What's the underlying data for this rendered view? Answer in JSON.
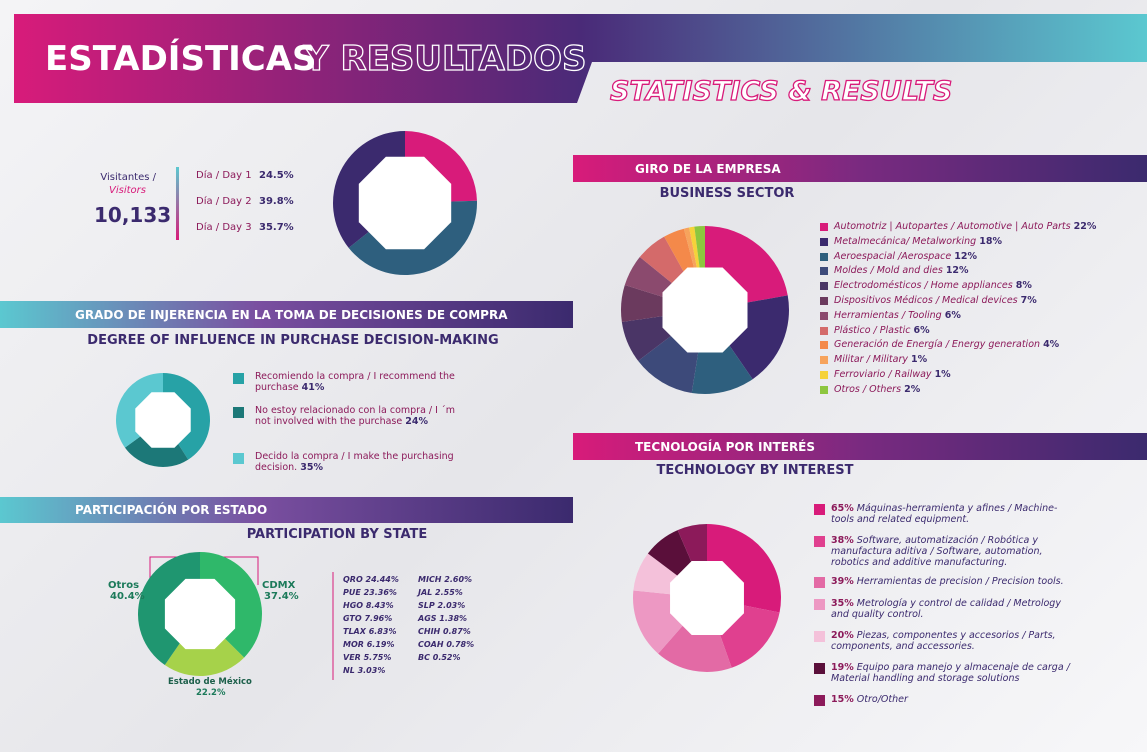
{
  "header": {
    "title_a": "ESTADÍSTICAS",
    "title_b": "Y RESULTADOS",
    "subtitle": "STATISTICS & RESULTS"
  },
  "chart_data": [
    {
      "type": "pie",
      "title": "Visitantes /",
      "subtitle": "Visitors",
      "total": {
        "value": 10133,
        "label": "10,133"
      },
      "categories": [
        "Día / Day 1",
        "Día / Day 2",
        "Día / Day 3"
      ],
      "values": [
        24.5,
        39.8,
        35.7
      ],
      "value_labels": [
        "24.5%",
        "39.8%",
        "35.7%"
      ],
      "colors": [
        "#d81b7a",
        "#2e5f7e",
        "#3b2a6e"
      ]
    },
    {
      "type": "pie",
      "title": "GRADO DE INJERENCIA EN LA TOMA DE DECISIONES DE COMPRA",
      "subtitle": "DEGREE OF INFLUENCE IN PURCHASE DECISION-MAKING",
      "categories": [
        "Recomiendo la compra / I recommend the purchase",
        "No estoy relacionado con la compra / I ´m not involved with the purchase",
        "Decido la compra / I make the purchasing decision."
      ],
      "values": [
        41,
        24,
        35
      ],
      "value_labels": [
        "41%",
        "24%",
        "35%"
      ],
      "colors": [
        "#27a2a6",
        "#1c7878",
        "#5bc8d0"
      ]
    },
    {
      "type": "pie",
      "title": "PARTICIPACIÓN POR ESTADO",
      "subtitle": "PARTICIPATION BY STATE",
      "categories": [
        "CDMX",
        "Estado de México",
        "Otros"
      ],
      "values": [
        37.4,
        22.2,
        40.4
      ],
      "value_labels": [
        "37.4%",
        "22.2%",
        "40.4%"
      ],
      "colors": [
        "#2fb86a",
        "#a6d24a",
        "#1f9670"
      ],
      "state_list": [
        "QRO 24.44%",
        "PUE 23.36%",
        "HGO 8.43%",
        "GTO 7.96%",
        "TLAX 6.83%",
        "MOR 6.19%",
        "VER 5.75%",
        "NL 3.03%",
        "MICH 2.60%",
        "JAL 2.55%",
        "SLP 2.03%",
        "AGS 1.38%",
        "CHIH 0.87%",
        "COAH 0.78%",
        "BC 0.52%"
      ]
    },
    {
      "type": "pie",
      "title": "GIRO DE LA EMPRESA",
      "subtitle": "BUSINESS SECTOR",
      "categories": [
        "Automotriz | Autopartes / Automotive | Auto Parts",
        "Metalmecánica/ Metalworking",
        "Aeroespacial /Aerospace",
        "Moldes / Mold and dies",
        "Electrodomésticos / Home appliances",
        "Dispositivos Médicos / Medical devices",
        "Herramientas / Tooling",
        "Plástico / Plastic",
        "Generación de Energía / Energy generation",
        "Militar / Military",
        "Ferroviario / Railway",
        "Otros / Others"
      ],
      "values": [
        22,
        18,
        12,
        12,
        8,
        7,
        6,
        6,
        4,
        1,
        1,
        2
      ],
      "value_labels": [
        "22%",
        "18%",
        "12%",
        "12%",
        "8%",
        "7%",
        "6%",
        "6%",
        "4%",
        "1%",
        "1%",
        "2%"
      ],
      "colors": [
        "#d81b7a",
        "#3b2a6e",
        "#2e5f7e",
        "#3d4a7a",
        "#4a3566",
        "#6b3a5e",
        "#8b4a6e",
        "#d46a6a",
        "#f4894a",
        "#f7a35c",
        "#f5d23a",
        "#8dc63f"
      ]
    },
    {
      "type": "pie",
      "title": "TECNOLOGÍA POR INTERÉS",
      "subtitle": "TECHNOLOGY BY INTEREST",
      "categories": [
        "Máquinas-herramienta y afines / Machine-tools and related equipment.",
        "Software, automatización / Robótica y manufactura aditiva / Software, automation, robotics and additive manufacturing.",
        "Herramientas de precision / Precision tools.",
        "Metrología y control de calidad / Metrology and quality control.",
        "Piezas, componentes y accesorios / Parts, components, and accessories.",
        "Equipo para manejo y almacenaje de carga / Material handling and storage solutions",
        "Otro/Other"
      ],
      "values": [
        65,
        38,
        39,
        35,
        20,
        19,
        15
      ],
      "value_labels": [
        "65%",
        "38%",
        "39%",
        "35%",
        "20%",
        "19%",
        "15%"
      ],
      "colors": [
        "#d81b7a",
        "#e0408f",
        "#e36aa5",
        "#ed98c3",
        "#f4c1da",
        "#5a0f3a",
        "#8c1a5a"
      ]
    }
  ]
}
